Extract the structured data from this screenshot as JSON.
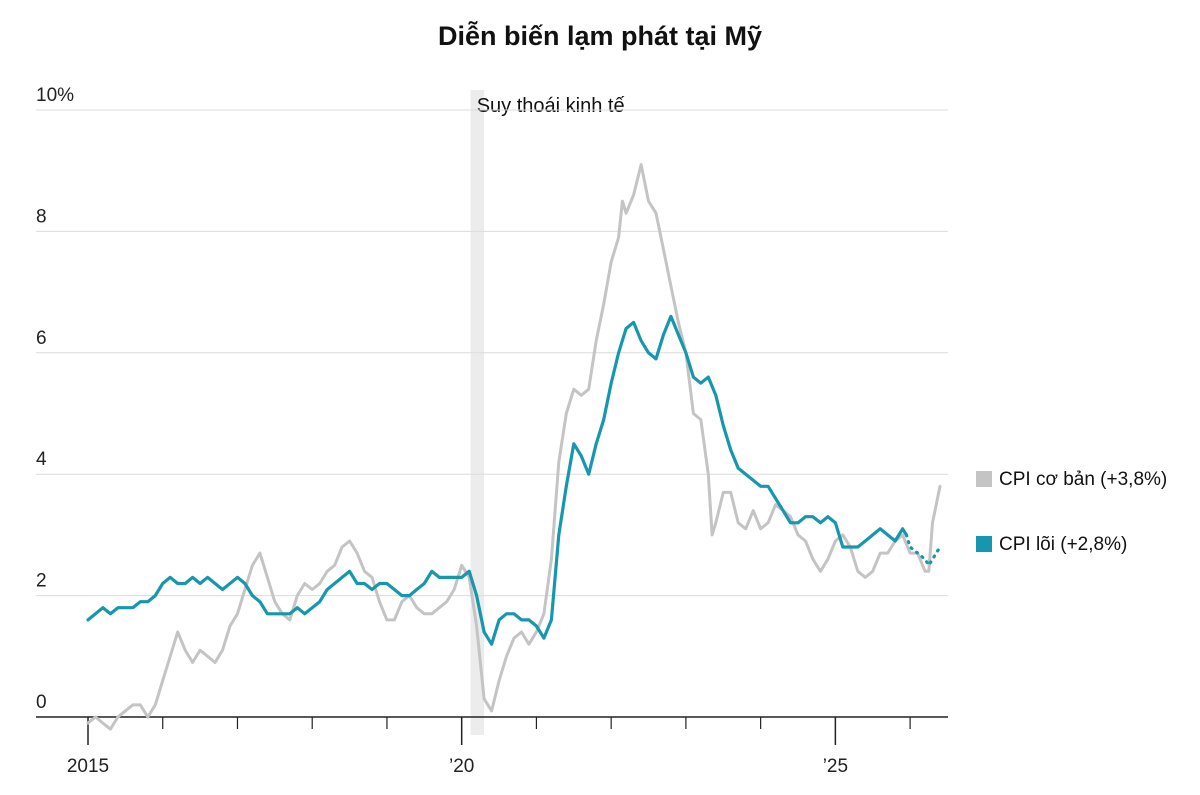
{
  "chart_data": {
    "type": "line",
    "title": "Diễn biến lạm phát tại Mỹ",
    "ylim": [
      0,
      10
    ],
    "xlim": [
      2015.0,
      2026.4
    ],
    "y_ticks": [
      {
        "value": 0,
        "label": "0"
      },
      {
        "value": 2,
        "label": "2"
      },
      {
        "value": 4,
        "label": "4"
      },
      {
        "value": 6,
        "label": "6"
      },
      {
        "value": 8,
        "label": "8"
      },
      {
        "value": 10,
        "label": "10%"
      }
    ],
    "x_tick_labels": [
      {
        "year": 2015,
        "label": "2015"
      },
      {
        "year": 2020,
        "label": "’20"
      },
      {
        "year": 2025,
        "label": "’25"
      }
    ],
    "x_minor_ticks": [
      2016,
      2017,
      2018,
      2019,
      2021,
      2022,
      2023,
      2024,
      2026
    ],
    "recession": {
      "label": "Suy thoái kinh tế",
      "start": 2020.12,
      "end": 2020.3
    },
    "grid": true,
    "legend_position": "right",
    "series": [
      {
        "name": "CPI cơ bản (+3,8%)",
        "color": "#c4c4c4",
        "points": [
          [
            2015.0,
            -0.1
          ],
          [
            2015.1,
            0.0
          ],
          [
            2015.2,
            -0.1
          ],
          [
            2015.3,
            -0.2
          ],
          [
            2015.4,
            0.0
          ],
          [
            2015.5,
            0.1
          ],
          [
            2015.6,
            0.2
          ],
          [
            2015.7,
            0.2
          ],
          [
            2015.8,
            0.0
          ],
          [
            2015.9,
            0.2
          ],
          [
            2016.0,
            0.6
          ],
          [
            2016.1,
            1.0
          ],
          [
            2016.2,
            1.4
          ],
          [
            2016.3,
            1.1
          ],
          [
            2016.4,
            0.9
          ],
          [
            2016.5,
            1.1
          ],
          [
            2016.6,
            1.0
          ],
          [
            2016.7,
            0.9
          ],
          [
            2016.8,
            1.1
          ],
          [
            2016.9,
            1.5
          ],
          [
            2017.0,
            1.7
          ],
          [
            2017.1,
            2.1
          ],
          [
            2017.2,
            2.5
          ],
          [
            2017.3,
            2.7
          ],
          [
            2017.4,
            2.3
          ],
          [
            2017.5,
            1.9
          ],
          [
            2017.6,
            1.7
          ],
          [
            2017.7,
            1.6
          ],
          [
            2017.8,
            2.0
          ],
          [
            2017.9,
            2.2
          ],
          [
            2018.0,
            2.1
          ],
          [
            2018.1,
            2.2
          ],
          [
            2018.2,
            2.4
          ],
          [
            2018.3,
            2.5
          ],
          [
            2018.4,
            2.8
          ],
          [
            2018.5,
            2.9
          ],
          [
            2018.6,
            2.7
          ],
          [
            2018.7,
            2.4
          ],
          [
            2018.8,
            2.3
          ],
          [
            2018.9,
            1.9
          ],
          [
            2019.0,
            1.6
          ],
          [
            2019.1,
            1.6
          ],
          [
            2019.2,
            1.9
          ],
          [
            2019.3,
            2.0
          ],
          [
            2019.4,
            1.8
          ],
          [
            2019.5,
            1.7
          ],
          [
            2019.6,
            1.7
          ],
          [
            2019.7,
            1.8
          ],
          [
            2019.8,
            1.9
          ],
          [
            2019.9,
            2.1
          ],
          [
            2020.0,
            2.5
          ],
          [
            2020.1,
            2.3
          ],
          [
            2020.2,
            1.5
          ],
          [
            2020.3,
            0.3
          ],
          [
            2020.4,
            0.1
          ],
          [
            2020.5,
            0.6
          ],
          [
            2020.6,
            1.0
          ],
          [
            2020.7,
            1.3
          ],
          [
            2020.8,
            1.4
          ],
          [
            2020.9,
            1.2
          ],
          [
            2021.0,
            1.4
          ],
          [
            2021.1,
            1.7
          ],
          [
            2021.2,
            2.6
          ],
          [
            2021.3,
            4.2
          ],
          [
            2021.4,
            5.0
          ],
          [
            2021.5,
            5.4
          ],
          [
            2021.6,
            5.3
          ],
          [
            2021.7,
            5.4
          ],
          [
            2021.8,
            6.2
          ],
          [
            2021.9,
            6.8
          ],
          [
            2022.0,
            7.5
          ],
          [
            2022.1,
            7.9
          ],
          [
            2022.15,
            8.5
          ],
          [
            2022.2,
            8.3
          ],
          [
            2022.3,
            8.6
          ],
          [
            2022.4,
            9.1
          ],
          [
            2022.5,
            8.5
          ],
          [
            2022.6,
            8.3
          ],
          [
            2022.7,
            7.7
          ],
          [
            2022.8,
            7.1
          ],
          [
            2022.9,
            6.5
          ],
          [
            2023.0,
            6.0
          ],
          [
            2023.1,
            5.0
          ],
          [
            2023.2,
            4.9
          ],
          [
            2023.3,
            4.0
          ],
          [
            2023.35,
            3.0
          ],
          [
            2023.4,
            3.2
          ],
          [
            2023.5,
            3.7
          ],
          [
            2023.6,
            3.7
          ],
          [
            2023.7,
            3.2
          ],
          [
            2023.8,
            3.1
          ],
          [
            2023.9,
            3.4
          ],
          [
            2024.0,
            3.1
          ],
          [
            2024.1,
            3.2
          ],
          [
            2024.2,
            3.5
          ],
          [
            2024.3,
            3.4
          ],
          [
            2024.4,
            3.3
          ],
          [
            2024.5,
            3.0
          ],
          [
            2024.6,
            2.9
          ],
          [
            2024.7,
            2.6
          ],
          [
            2024.8,
            2.4
          ],
          [
            2024.9,
            2.6
          ],
          [
            2025.0,
            2.9
          ],
          [
            2025.1,
            3.0
          ],
          [
            2025.2,
            2.8
          ],
          [
            2025.3,
            2.4
          ],
          [
            2025.4,
            2.3
          ],
          [
            2025.5,
            2.4
          ],
          [
            2025.6,
            2.7
          ],
          [
            2025.7,
            2.7
          ],
          [
            2025.8,
            2.9
          ],
          [
            2025.9,
            3.0
          ],
          [
            2026.0,
            2.7
          ],
          [
            2026.1,
            2.7
          ],
          [
            2026.2,
            2.4
          ],
          [
            2026.25,
            2.4
          ],
          [
            2026.3,
            3.2
          ],
          [
            2026.4,
            3.8
          ]
        ]
      },
      {
        "name": "CPI lõi (+2,8%)",
        "color": "#1797ad",
        "dotted_after": 2025.95,
        "points": [
          [
            2015.0,
            1.6
          ],
          [
            2015.1,
            1.7
          ],
          [
            2015.2,
            1.8
          ],
          [
            2015.3,
            1.7
          ],
          [
            2015.4,
            1.8
          ],
          [
            2015.5,
            1.8
          ],
          [
            2015.6,
            1.8
          ],
          [
            2015.7,
            1.9
          ],
          [
            2015.8,
            1.9
          ],
          [
            2015.9,
            2.0
          ],
          [
            2016.0,
            2.2
          ],
          [
            2016.1,
            2.3
          ],
          [
            2016.2,
            2.2
          ],
          [
            2016.3,
            2.2
          ],
          [
            2016.4,
            2.3
          ],
          [
            2016.5,
            2.2
          ],
          [
            2016.6,
            2.3
          ],
          [
            2016.7,
            2.2
          ],
          [
            2016.8,
            2.1
          ],
          [
            2016.9,
            2.2
          ],
          [
            2017.0,
            2.3
          ],
          [
            2017.1,
            2.2
          ],
          [
            2017.2,
            2.0
          ],
          [
            2017.3,
            1.9
          ],
          [
            2017.4,
            1.7
          ],
          [
            2017.5,
            1.7
          ],
          [
            2017.6,
            1.7
          ],
          [
            2017.7,
            1.7
          ],
          [
            2017.8,
            1.8
          ],
          [
            2017.9,
            1.7
          ],
          [
            2018.0,
            1.8
          ],
          [
            2018.1,
            1.9
          ],
          [
            2018.2,
            2.1
          ],
          [
            2018.3,
            2.2
          ],
          [
            2018.4,
            2.3
          ],
          [
            2018.5,
            2.4
          ],
          [
            2018.6,
            2.2
          ],
          [
            2018.7,
            2.2
          ],
          [
            2018.8,
            2.1
          ],
          [
            2018.9,
            2.2
          ],
          [
            2019.0,
            2.2
          ],
          [
            2019.1,
            2.1
          ],
          [
            2019.2,
            2.0
          ],
          [
            2019.3,
            2.0
          ],
          [
            2019.4,
            2.1
          ],
          [
            2019.5,
            2.2
          ],
          [
            2019.6,
            2.4
          ],
          [
            2019.7,
            2.3
          ],
          [
            2019.8,
            2.3
          ],
          [
            2019.9,
            2.3
          ],
          [
            2020.0,
            2.3
          ],
          [
            2020.1,
            2.4
          ],
          [
            2020.2,
            2.0
          ],
          [
            2020.3,
            1.4
          ],
          [
            2020.4,
            1.2
          ],
          [
            2020.5,
            1.6
          ],
          [
            2020.6,
            1.7
          ],
          [
            2020.7,
            1.7
          ],
          [
            2020.8,
            1.6
          ],
          [
            2020.9,
            1.6
          ],
          [
            2021.0,
            1.5
          ],
          [
            2021.1,
            1.3
          ],
          [
            2021.2,
            1.6
          ],
          [
            2021.3,
            3.0
          ],
          [
            2021.4,
            3.8
          ],
          [
            2021.5,
            4.5
          ],
          [
            2021.6,
            4.3
          ],
          [
            2021.7,
            4.0
          ],
          [
            2021.8,
            4.5
          ],
          [
            2021.9,
            4.9
          ],
          [
            2022.0,
            5.5
          ],
          [
            2022.1,
            6.0
          ],
          [
            2022.2,
            6.4
          ],
          [
            2022.3,
            6.5
          ],
          [
            2022.4,
            6.2
          ],
          [
            2022.5,
            6.0
          ],
          [
            2022.6,
            5.9
          ],
          [
            2022.7,
            6.3
          ],
          [
            2022.8,
            6.6
          ],
          [
            2022.9,
            6.3
          ],
          [
            2023.0,
            6.0
          ],
          [
            2023.1,
            5.6
          ],
          [
            2023.2,
            5.5
          ],
          [
            2023.3,
            5.6
          ],
          [
            2023.4,
            5.3
          ],
          [
            2023.5,
            4.8
          ],
          [
            2023.6,
            4.4
          ],
          [
            2023.7,
            4.1
          ],
          [
            2023.8,
            4.0
          ],
          [
            2023.9,
            3.9
          ],
          [
            2024.0,
            3.8
          ],
          [
            2024.1,
            3.8
          ],
          [
            2024.2,
            3.6
          ],
          [
            2024.3,
            3.4
          ],
          [
            2024.4,
            3.2
          ],
          [
            2024.5,
            3.2
          ],
          [
            2024.6,
            3.3
          ],
          [
            2024.7,
            3.3
          ],
          [
            2024.8,
            3.2
          ],
          [
            2024.9,
            3.3
          ],
          [
            2025.0,
            3.2
          ],
          [
            2025.1,
            2.8
          ],
          [
            2025.2,
            2.8
          ],
          [
            2025.3,
            2.8
          ],
          [
            2025.4,
            2.9
          ],
          [
            2025.5,
            3.0
          ],
          [
            2025.6,
            3.1
          ],
          [
            2025.7,
            3.0
          ],
          [
            2025.8,
            2.9
          ],
          [
            2025.9,
            3.1
          ],
          [
            2025.95,
            3.0
          ],
          [
            2026.0,
            2.8
          ],
          [
            2026.1,
            2.7
          ],
          [
            2026.2,
            2.6
          ],
          [
            2026.25,
            2.5
          ],
          [
            2026.3,
            2.6
          ],
          [
            2026.4,
            2.8
          ]
        ]
      }
    ]
  }
}
